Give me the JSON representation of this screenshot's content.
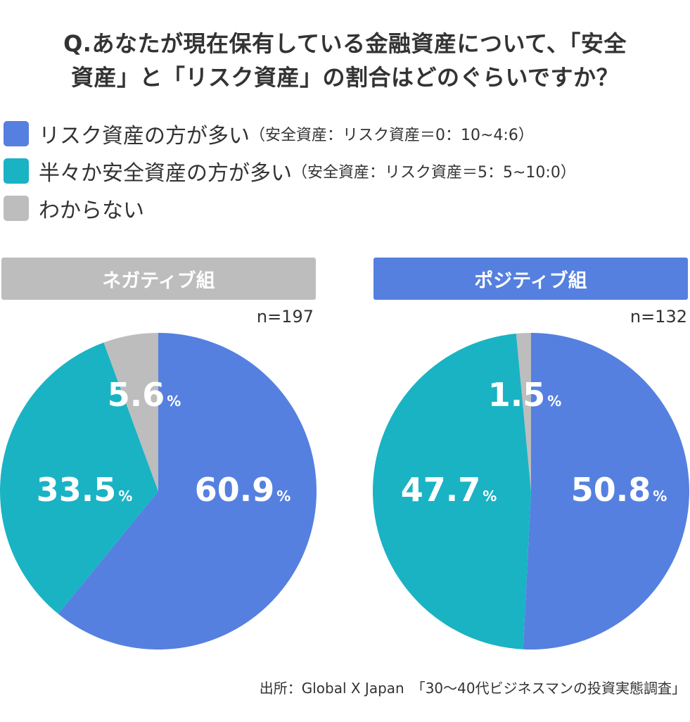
{
  "title": {
    "line1": "Q.あなたが現在保有している金融資産について、「安全",
    "line2": "資産」と「リスク資産」の割合はどのぐらいですか？"
  },
  "legend": [
    {
      "label": "リスク資産の方が多い",
      "note": "（安全資産：リスク資産＝0：10~4:6）",
      "color": "#5580E0"
    },
    {
      "label": "半々か安全資産の方が多い",
      "note": "（安全資産：リスク資産＝5：5~10:0）",
      "color": "#19B3C4"
    },
    {
      "label": "わからない",
      "note": "",
      "color": "#BDBDBD"
    }
  ],
  "groups": [
    {
      "name": "ネガティブ組",
      "n": "n=197",
      "header_color": "#BDBDBD"
    },
    {
      "name": "ポジティブ組",
      "n": "n=132",
      "header_color": "#5580E0"
    }
  ],
  "percent_sign": "%",
  "chart_data": [
    {
      "type": "pie",
      "title": "ネガティブ組",
      "categories": [
        "リスク資産の方が多い",
        "半々か安全資産の方が多い",
        "わからない"
      ],
      "values": [
        60.9,
        33.5,
        5.6
      ],
      "labels": [
        "60.9",
        "33.5",
        "5.6"
      ],
      "colors": [
        "#5580E0",
        "#19B3C4",
        "#BDBDBD"
      ]
    },
    {
      "type": "pie",
      "title": "ポジティブ組",
      "categories": [
        "リスク資産の方が多い",
        "半々か安全資産の方が多い",
        "わからない"
      ],
      "values": [
        50.8,
        47.7,
        1.5
      ],
      "labels": [
        "50.8",
        "47.7",
        "1.5"
      ],
      "colors": [
        "#5580E0",
        "#19B3C4",
        "#BDBDBD"
      ]
    }
  ],
  "source": "出所：Global X Japan　「30～40代ビジネスマンの投資実態調査」"
}
